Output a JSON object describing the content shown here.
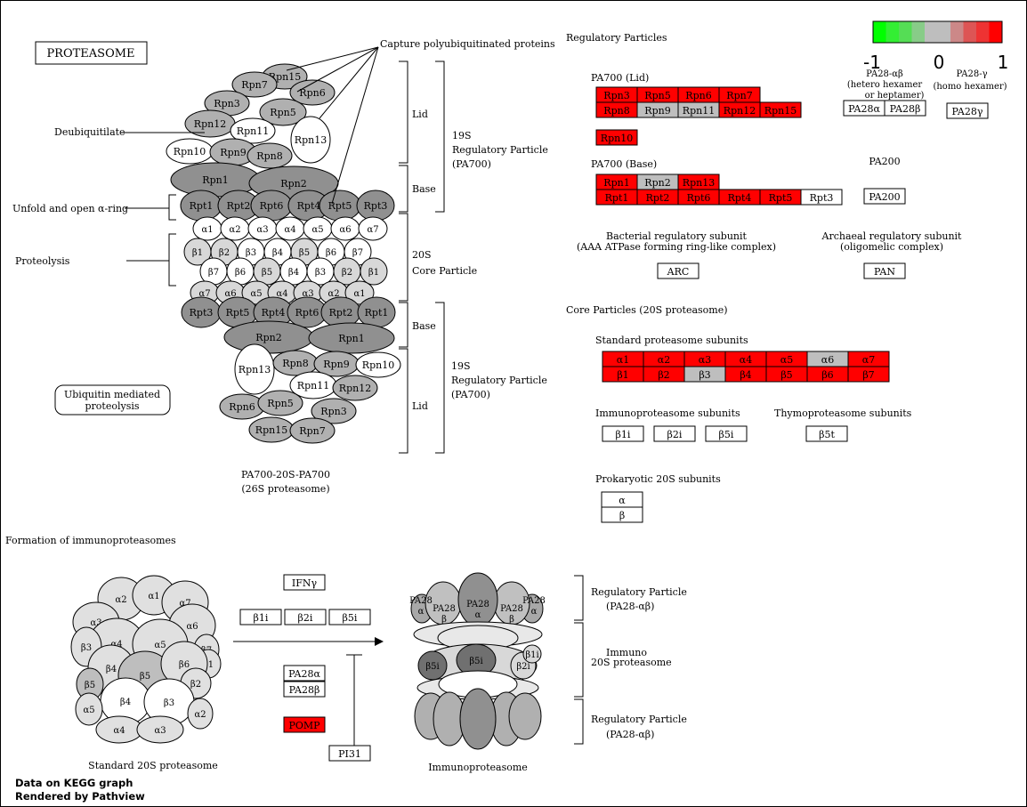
{
  "title": "PROTEASOME",
  "footer": {
    "line1": "Data on KEGG graph",
    "line2": "Rendered by Pathview"
  },
  "legend": {
    "colors": [
      "#00ff00",
      "#33ee33",
      "#55dd55",
      "#88cc88",
      "#bebebe",
      "#bebebe",
      "#cc8888",
      "#dd5555",
      "#ee3333",
      "#ff0000"
    ],
    "labels": [
      "-1",
      "0",
      "1"
    ]
  },
  "labels": {
    "capture": "Capture polyubiquitinated proteins",
    "deubiq": "Deubiquitilate",
    "unfold": "Unfold and open α-ring",
    "proteolysis": "Proteolysis",
    "lid": "Lid",
    "base": "Base",
    "rp19s_top": [
      "19S",
      "Regulatory Particle",
      "(PA700)"
    ],
    "core20s": [
      "20S",
      "Core Particle"
    ],
    "rp19s_bottom": [
      "19S",
      "Regulatory Particle",
      "(PA700)"
    ],
    "ubiq": [
      "Ubiquitin mediated",
      "proteolysis"
    ],
    "pa700_20s": [
      "PA700-20S-PA700",
      "(26S proteasome)"
    ],
    "formation": "Formation of immunoproteasomes",
    "std20s": "Standard 20S proteasome",
    "immunoproteasome": "Immunoproteasome",
    "rp_pa28_top": [
      "Regulatory Particle",
      "(PA28-αβ)"
    ],
    "immuno20s": [
      "Immuno",
      "20S proteasome"
    ],
    "rp_pa28_bottom": [
      "Regulatory Particle",
      "(PA28-αβ)"
    ],
    "regulatory_particles": "Regulatory Particles",
    "pa700_lid": "PA700 (Lid)",
    "pa700_base": "PA700 (Base)",
    "pa28ab": [
      "PA28-αβ",
      "(hetero hexamer",
      "or heptamer)"
    ],
    "pa28g": [
      "PA28-γ",
      "(homo hexamer)"
    ],
    "pa200": "PA200",
    "bacterial": [
      "Bacterial regulatory subunit",
      "(AAA ATPase forming ring-like complex)"
    ],
    "archaeal": [
      "Archaeal regulatory subunit",
      "(oligomelic complex)"
    ],
    "core_particles": "Core Particles (20S proteasome)",
    "standard_subunits": "Standard proteasome subunits",
    "immuno_subunits": "Immunoproteasome subunits",
    "thymo_subunits": "Thymoproteasome subunits",
    "prokaryotic": "Prokaryotic 20S subunits"
  },
  "lid_rows": [
    [
      {
        "label": "Rpn3",
        "color": "#ff0000"
      },
      {
        "label": "Rpn5",
        "color": "#ff0000"
      },
      {
        "label": "Rpn6",
        "color": "#ff0000"
      },
      {
        "label": "Rpn7",
        "color": "#ff0000"
      }
    ],
    [
      {
        "label": "Rpn8",
        "color": "#ff0000"
      },
      {
        "label": "Rpn9",
        "color": "#bebebe"
      },
      {
        "label": "Rpn11",
        "color": "#bebebe"
      },
      {
        "label": "Rpn12",
        "color": "#ff0000"
      },
      {
        "label": "Rpn15",
        "color": "#ff0000"
      }
    ],
    [
      {
        "label": "Rpn10",
        "color": "#ff0000"
      }
    ]
  ],
  "base_rows": [
    [
      {
        "label": "Rpn1",
        "color": "#ff0000"
      },
      {
        "label": "Rpn2",
        "color": "#bebebe"
      },
      {
        "label": "Rpn13",
        "color": "#ff0000"
      }
    ],
    [
      {
        "label": "Rpt1",
        "color": "#ff0000"
      },
      {
        "label": "Rpt2",
        "color": "#ff0000"
      },
      {
        "label": "Rpt6",
        "color": "#ff0000"
      },
      {
        "label": "Rpt4",
        "color": "#ff0000"
      },
      {
        "label": "Rpt5",
        "color": "#ff0000"
      },
      {
        "label": "Rpt3",
        "color": "#ffffff"
      }
    ]
  ],
  "pa28_boxes": [
    {
      "label": "PA28α",
      "color": "#ffffff"
    },
    {
      "label": "PA28β",
      "color": "#ffffff"
    }
  ],
  "pa28g_box": {
    "label": "PA28γ",
    "color": "#ffffff"
  },
  "pa200_box": {
    "label": "PA200",
    "color": "#ffffff"
  },
  "arc_box": {
    "label": "ARC",
    "color": "#ffffff"
  },
  "pan_box": {
    "label": "PAN",
    "color": "#ffffff"
  },
  "standard_alpha": [
    {
      "label": "α1",
      "color": "#ff0000"
    },
    {
      "label": "α2",
      "color": "#ff0000"
    },
    {
      "label": "α3",
      "color": "#ff0000"
    },
    {
      "label": "α4",
      "color": "#ff0000"
    },
    {
      "label": "α5",
      "color": "#ff0000"
    },
    {
      "label": "α6",
      "color": "#bebebe"
    },
    {
      "label": "α7",
      "color": "#ff0000"
    }
  ],
  "standard_beta": [
    {
      "label": "β1",
      "color": "#ff0000"
    },
    {
      "label": "β2",
      "color": "#ff0000"
    },
    {
      "label": "β3",
      "color": "#bebebe"
    },
    {
      "label": "β4",
      "color": "#ff0000"
    },
    {
      "label": "β5",
      "color": "#ff0000"
    },
    {
      "label": "β6",
      "color": "#ff0000"
    },
    {
      "label": "β7",
      "color": "#ff0000"
    }
  ],
  "immuno_boxes": [
    {
      "label": "β1i",
      "color": "#ffffff"
    },
    {
      "label": "β2i",
      "color": "#ffffff"
    },
    {
      "label": "β5i",
      "color": "#ffffff"
    }
  ],
  "thymo_box": {
    "label": "β5t",
    "color": "#ffffff"
  },
  "prok_boxes": [
    {
      "label": "α",
      "color": "#ffffff"
    },
    {
      "label": "β",
      "color": "#ffffff"
    }
  ],
  "formation_boxes": {
    "ifng": {
      "label": "IFNγ",
      "color": "#ffffff"
    },
    "immuno": [
      {
        "label": "β1i",
        "color": "#ffffff"
      },
      {
        "label": "β2i",
        "color": "#ffffff"
      },
      {
        "label": "β5i",
        "color": "#ffffff"
      }
    ],
    "pa28": [
      {
        "label": "PA28α",
        "color": "#ffffff"
      },
      {
        "label": "PA28β",
        "color": "#ffffff"
      }
    ],
    "pomp": {
      "label": "POMP",
      "color": "#ff0000"
    },
    "pi31": {
      "label": "PI31",
      "color": "#ffffff"
    }
  },
  "structure_26s": {
    "upper_lid": [
      {
        "label": "Rpn15",
        "color": "#b0b0b0"
      },
      {
        "label": "Rpn7",
        "color": "#b0b0b0"
      },
      {
        "label": "Rpn6",
        "color": "#b0b0b0"
      },
      {
        "label": "Rpn3",
        "color": "#b0b0b0"
      },
      {
        "label": "Rpn5",
        "color": "#b0b0b0"
      },
      {
        "label": "Rpn12",
        "color": "#b0b0b0"
      },
      {
        "label": "Rpn11",
        "color": "#ffffff"
      },
      {
        "label": "Rpn13",
        "color": "#ffffff"
      },
      {
        "label": "Rpn10",
        "color": "#ffffff"
      },
      {
        "label": "Rpn9",
        "color": "#b0b0b0"
      },
      {
        "label": "Rpn8",
        "color": "#b0b0b0"
      }
    ],
    "upper_base": [
      {
        "label": "Rpn1",
        "color": "#909090"
      },
      {
        "label": "Rpn2",
        "color": "#909090"
      },
      {
        "label": "Rpt1",
        "color": "#909090"
      },
      {
        "label": "Rpt2",
        "color": "#909090"
      },
      {
        "label": "Rpt6",
        "color": "#909090"
      },
      {
        "label": "Rpt4",
        "color": "#909090"
      },
      {
        "label": "Rpt5",
        "color": "#909090"
      },
      {
        "label": "Rpt3",
        "color": "#909090"
      }
    ],
    "alpha_top": [
      "α1",
      "α2",
      "α3",
      "α4",
      "α5",
      "α6",
      "α7"
    ],
    "beta_top": [
      {
        "label": "β1",
        "color": "#d8d8d8"
      },
      {
        "label": "β2",
        "color": "#d8d8d8"
      },
      {
        "label": "β3",
        "color": "#ffffff"
      },
      {
        "label": "β4",
        "color": "#ffffff"
      },
      {
        "label": "β5",
        "color": "#d8d8d8"
      },
      {
        "label": "β6",
        "color": "#ffffff"
      },
      {
        "label": "β7",
        "color": "#ffffff"
      }
    ],
    "beta_bottom": [
      {
        "label": "β7",
        "color": "#ffffff"
      },
      {
        "label": "β6",
        "color": "#ffffff"
      },
      {
        "label": "β5",
        "color": "#d8d8d8"
      },
      {
        "label": "β4",
        "color": "#ffffff"
      },
      {
        "label": "β3",
        "color": "#ffffff"
      },
      {
        "label": "β2",
        "color": "#d8d8d8"
      },
      {
        "label": "β1",
        "color": "#d8d8d8"
      }
    ],
    "alpha_bottom": [
      "α7",
      "α6",
      "α5",
      "α4",
      "α3",
      "α2",
      "α1"
    ],
    "lower_base": [
      {
        "label": "Rpt3",
        "color": "#909090"
      },
      {
        "label": "Rpt5",
        "color": "#909090"
      },
      {
        "label": "Rpt4",
        "color": "#909090"
      },
      {
        "label": "Rpt6",
        "color": "#909090"
      },
      {
        "label": "Rpt2",
        "color": "#909090"
      },
      {
        "label": "Rpt1",
        "color": "#909090"
      },
      {
        "label": "Rpn2",
        "color": "#909090"
      },
      {
        "label": "Rpn1",
        "color": "#909090"
      }
    ],
    "lower_lid": [
      {
        "label": "Rpn13",
        "color": "#ffffff"
      },
      {
        "label": "Rpn8",
        "color": "#b0b0b0"
      },
      {
        "label": "Rpn9",
        "color": "#b0b0b0"
      },
      {
        "label": "Rpn10",
        "color": "#ffffff"
      },
      {
        "label": "Rpn11",
        "color": "#ffffff"
      },
      {
        "label": "Rpn12",
        "color": "#b0b0b0"
      },
      {
        "label": "Rpn6",
        "color": "#b0b0b0"
      },
      {
        "label": "Rpn5",
        "color": "#b0b0b0"
      },
      {
        "label": "Rpn3",
        "color": "#b0b0b0"
      },
      {
        "label": "Rpn15",
        "color": "#b0b0b0"
      },
      {
        "label": "Rpn7",
        "color": "#b0b0b0"
      }
    ]
  },
  "std20s_structure": [
    "α2",
    "α1",
    "α7",
    "α3",
    "α6",
    "α4",
    "α5",
    "β7",
    "β3",
    "β1",
    "β4",
    "β5",
    "β6",
    "β5",
    "β2",
    "β4",
    "β3",
    "α5",
    "α2",
    "α4",
    "α3"
  ],
  "immuno_structure": {
    "pa28": [
      "PA28 α",
      "PA28 β",
      "PA28 α",
      "PA28 β",
      "PA28 α"
    ],
    "core": [
      "β5i",
      "β5i",
      "β2i",
      "β1i"
    ]
  }
}
